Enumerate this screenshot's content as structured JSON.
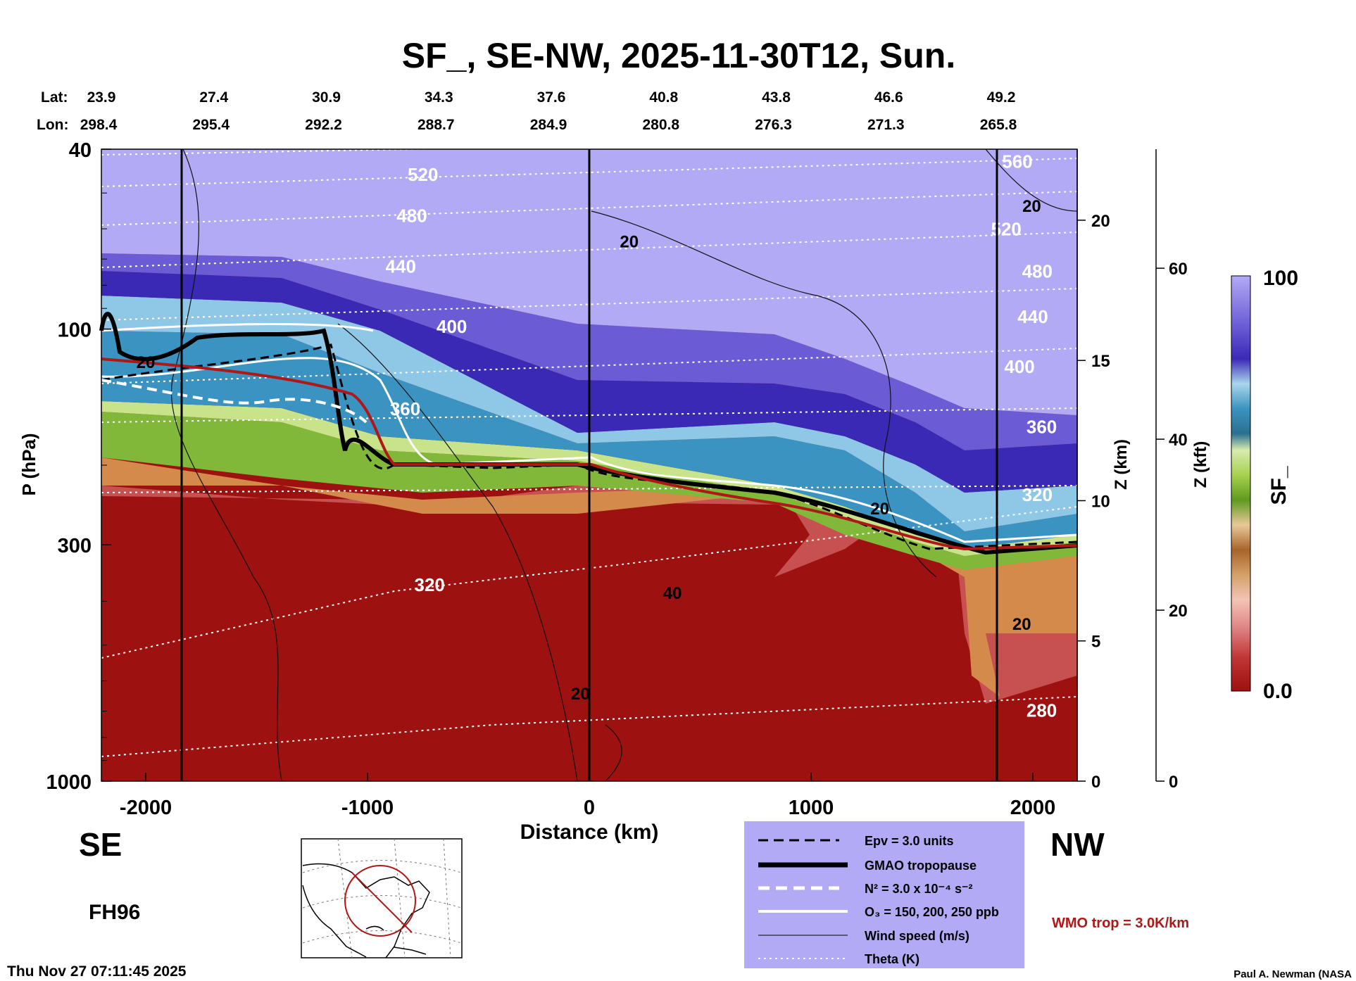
{
  "chart_data": {
    "type": "heatmap",
    "title": "SF_, SE-NW, 2025-11-30T12, Sun.",
    "xlabel": "Distance (km)",
    "ylabel": "P (hPa)",
    "z_km_label": "Z (km)",
    "z_kft_label": "Z (kft)",
    "colorbar_label": "SF_",
    "colorbar_range": [
      0.0,
      100
    ],
    "colorbar_ticks": [
      "100",
      "0.0"
    ],
    "xlim": [
      -2200,
      2200
    ],
    "ylim": [
      1000,
      40
    ],
    "x_ticks": [
      {
        "value": -2000,
        "label": "-2000"
      },
      {
        "value": -1000,
        "label": "-1000"
      },
      {
        "value": 0,
        "label": "0"
      },
      {
        "value": 1000,
        "label": "1000"
      },
      {
        "value": 2000,
        "label": "2000"
      }
    ],
    "p_ticks": [
      {
        "value": 40,
        "label": "40"
      },
      {
        "value": 100,
        "label": "100"
      },
      {
        "value": 300,
        "label": "300"
      },
      {
        "value": 1000,
        "label": "1000"
      }
    ],
    "z_km_ticks": [
      {
        "value": 0,
        "label": "0"
      },
      {
        "value": 5,
        "label": "5"
      },
      {
        "value": 10,
        "label": "10"
      },
      {
        "value": 15,
        "label": "15"
      },
      {
        "value": 20,
        "label": "20"
      }
    ],
    "z_kft_ticks": [
      {
        "value": 0,
        "label": "0"
      },
      {
        "value": 20,
        "label": "20"
      },
      {
        "value": 40,
        "label": "40"
      },
      {
        "value": 60,
        "label": "60"
      }
    ],
    "lat_lon_header": {
      "lat_label": "Lat:",
      "lon_label": "Lon:",
      "points": [
        {
          "lat": "23.9",
          "lon": "298.4"
        },
        {
          "lat": "27.4",
          "lon": "295.4"
        },
        {
          "lat": "30.9",
          "lon": "292.2"
        },
        {
          "lat": "34.3",
          "lon": "288.7"
        },
        {
          "lat": "37.6",
          "lon": "284.9"
        },
        {
          "lat": "40.8",
          "lon": "280.8"
        },
        {
          "lat": "43.8",
          "lon": "276.3"
        },
        {
          "lat": "46.6",
          "lon": "271.3"
        },
        {
          "lat": "49.2",
          "lon": "265.8"
        }
      ]
    },
    "theta_labels": [
      {
        "x": -750,
        "p": 47,
        "label": "520"
      },
      {
        "x": -800,
        "p": 58,
        "label": "480"
      },
      {
        "x": -850,
        "p": 75,
        "label": "440"
      },
      {
        "x": -620,
        "p": 102,
        "label": "400"
      },
      {
        "x": -830,
        "p": 155,
        "label": "360"
      },
      {
        "x": -720,
        "p": 380,
        "label": "320"
      },
      {
        "x": 1930,
        "p": 44,
        "label": "560"
      },
      {
        "x": 1880,
        "p": 62,
        "label": "520"
      },
      {
        "x": 2020,
        "p": 77,
        "label": "480"
      },
      {
        "x": 2000,
        "p": 97,
        "label": "440"
      },
      {
        "x": 1940,
        "p": 125,
        "label": "400"
      },
      {
        "x": 2040,
        "p": 170,
        "label": "360"
      },
      {
        "x": 2020,
        "p": 240,
        "label": "320"
      },
      {
        "x": 2040,
        "p": 720,
        "label": "280"
      }
    ],
    "wind_labels": [
      {
        "x": -2000,
        "p": 122,
        "label": "20"
      },
      {
        "x": 180,
        "p": 66,
        "label": "20"
      },
      {
        "x": 1995,
        "p": 55,
        "label": "20"
      },
      {
        "x": 1310,
        "p": 257,
        "label": "20"
      },
      {
        "x": 375,
        "p": 395,
        "label": "40"
      },
      {
        "x": 1950,
        "p": 463,
        "label": "20"
      },
      {
        "x": -40,
        "p": 660,
        "label": "20"
      }
    ],
    "direction_left": "SE",
    "direction_right": "NW",
    "forecast_hour": "FH96",
    "timestamp": "Thu Nov 27 07:11:45 2025",
    "credit": "Paul A. Newman (NASA",
    "wmo_note": "WMO trop = 3.0K/km",
    "legend_entries": [
      {
        "style": "black-dash",
        "text": "Epv = 3.0 units"
      },
      {
        "style": "black-thick",
        "text": "GMAO tropopause"
      },
      {
        "style": "white-dash",
        "text": "N² = 3.0 x 10⁻⁴ s⁻²"
      },
      {
        "style": "white-solid",
        "text": "O₃ = 150, 200, 250 ppb"
      },
      {
        "style": "black-thin",
        "text": "Wind speed (m/s)"
      },
      {
        "style": "white-dotted",
        "text": "Theta (K)"
      }
    ],
    "colors": {
      "strat_top": "#b3aaf5",
      "strat_dark": "#3321b0",
      "tropo_red": "#9d1110",
      "gmao_trop": "#000000",
      "wmo_trop": "#b01818",
      "legend_bg": "#b3aaf5"
    }
  }
}
